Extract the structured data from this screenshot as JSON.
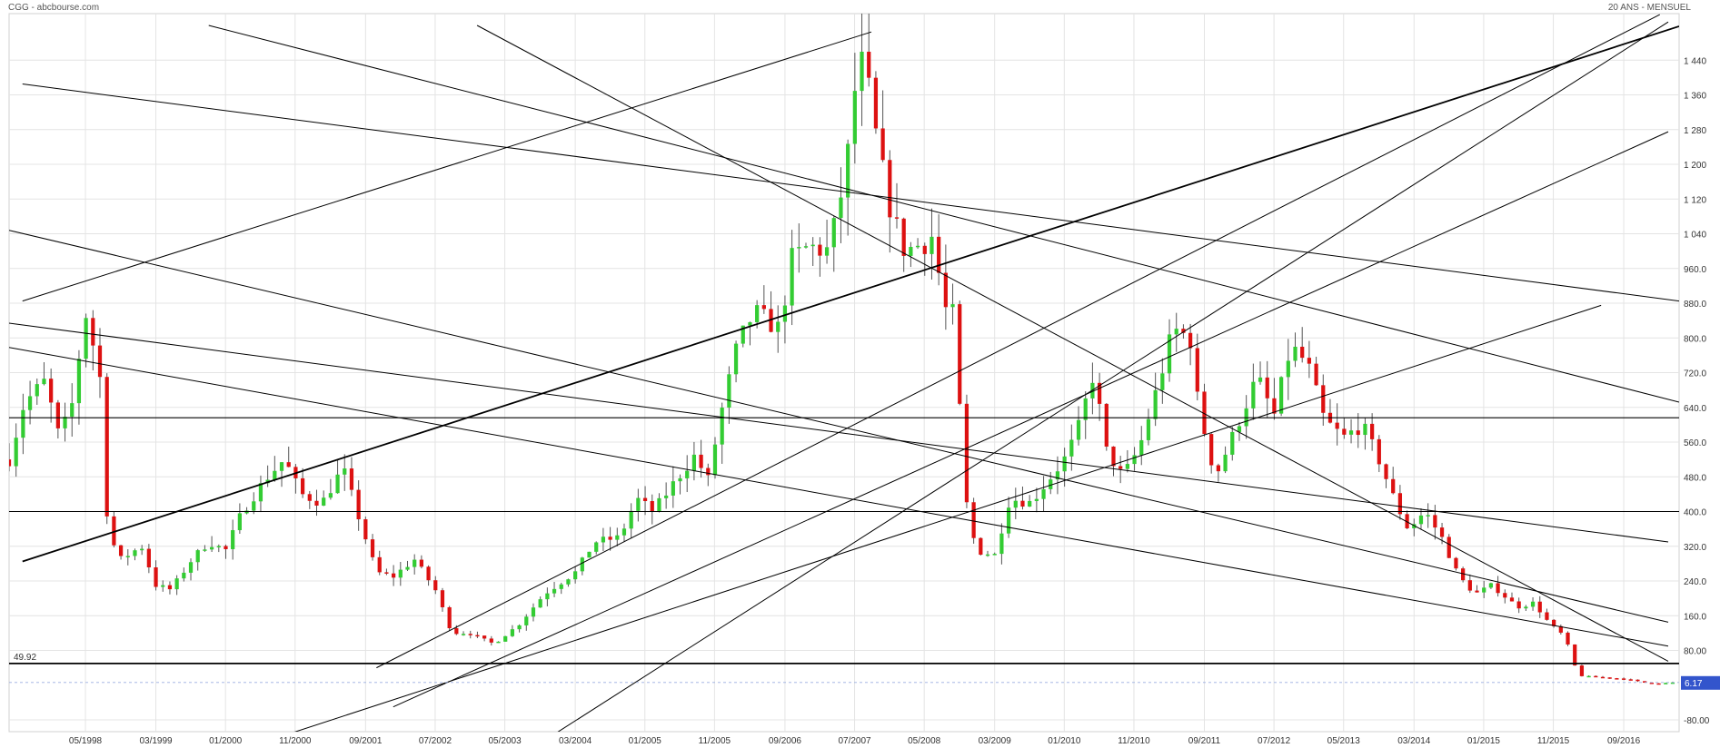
{
  "header": {
    "left_title": "CGG - abcbourse.com",
    "right_title": "20 ANS - MENSUEL"
  },
  "chart_data": {
    "type": "candlestick",
    "title": "CGG - abcbourse.com",
    "subtitle": "20 ANS - MENSUEL",
    "xlabel": "",
    "ylabel": "",
    "ylim": [
      -110,
      1490
    ],
    "grid": true,
    "legend": "none",
    "colors": {
      "up": "#33cc33",
      "down": "#dd1111",
      "grid": "#e4e4e4",
      "line": "#000000",
      "badge": "#3355cc"
    },
    "y_ticks": [
      -80,
      80,
      160,
      240,
      320,
      400,
      480,
      560,
      640,
      720,
      800,
      880,
      960,
      1040,
      1120,
      1200,
      1280,
      1360,
      1440
    ],
    "y_tick_labels": [
      "-80.00",
      "80.00",
      "160.0",
      "240.0",
      "320.0",
      "400.0",
      "480.0",
      "560.0",
      "640.0",
      "720.0",
      "800.0",
      "880.0",
      "960.0",
      "1 040",
      "1 120",
      "1 200",
      "1 280",
      "1 360",
      "1 440"
    ],
    "x_ticks": [
      {
        "label": "05/1998",
        "t": 1998.33
      },
      {
        "label": "03/1999",
        "t": 1999.17
      },
      {
        "label": "01/2000",
        "t": 2000.0
      },
      {
        "label": "11/2000",
        "t": 2000.83
      },
      {
        "label": "09/2001",
        "t": 2001.67
      },
      {
        "label": "07/2002",
        "t": 2002.5
      },
      {
        "label": "05/2003",
        "t": 2003.33
      },
      {
        "label": "03/2004",
        "t": 2004.17
      },
      {
        "label": "01/2005",
        "t": 2005.0
      },
      {
        "label": "11/2005",
        "t": 2005.83
      },
      {
        "label": "09/2006",
        "t": 2006.67
      },
      {
        "label": "07/2007",
        "t": 2007.5
      },
      {
        "label": "05/2008",
        "t": 2008.33
      },
      {
        "label": "03/2009",
        "t": 2009.17
      },
      {
        "label": "01/2010",
        "t": 2010.0
      },
      {
        "label": "11/2010",
        "t": 2010.83
      },
      {
        "label": "09/2011",
        "t": 2011.67
      },
      {
        "label": "07/2012",
        "t": 2012.5
      },
      {
        "label": "05/2013",
        "t": 2013.33
      },
      {
        "label": "03/2014",
        "t": 2014.17
      },
      {
        "label": "01/2015",
        "t": 2015.0
      },
      {
        "label": "11/2015",
        "t": 2015.83
      },
      {
        "label": "09/2016",
        "t": 2016.67
      }
    ],
    "t_range": [
      1997.42,
      2017.33
    ],
    "price_anchors": [
      [
        1997.42,
        520
      ],
      [
        1997.6,
        650
      ],
      [
        1997.85,
        700
      ],
      [
        1998.0,
        580
      ],
      [
        1998.15,
        620
      ],
      [
        1998.33,
        860
      ],
      [
        1998.5,
        720
      ],
      [
        1998.6,
        350
      ],
      [
        1998.75,
        290
      ],
      [
        1999.0,
        320
      ],
      [
        1999.17,
        230
      ],
      [
        1999.35,
        220
      ],
      [
        1999.6,
        290
      ],
      [
        1999.8,
        330
      ],
      [
        2000.0,
        310
      ],
      [
        2000.2,
        400
      ],
      [
        2000.5,
        480
      ],
      [
        2000.7,
        520
      ],
      [
        2000.9,
        440
      ],
      [
        2001.15,
        420
      ],
      [
        2001.4,
        500
      ],
      [
        2001.6,
        380
      ],
      [
        2001.8,
        260
      ],
      [
        2002.0,
        250
      ],
      [
        2002.25,
        290
      ],
      [
        2002.5,
        220
      ],
      [
        2002.7,
        120
      ],
      [
        2002.9,
        120
      ],
      [
        2003.2,
        95
      ],
      [
        2003.5,
        140
      ],
      [
        2003.8,
        210
      ],
      [
        2004.17,
        260
      ],
      [
        2004.4,
        330
      ],
      [
        2004.7,
        340
      ],
      [
        2004.9,
        430
      ],
      [
        2005.1,
        400
      ],
      [
        2005.4,
        480
      ],
      [
        2005.6,
        530
      ],
      [
        2005.75,
        470
      ],
      [
        2005.9,
        620
      ],
      [
        2006.1,
        780
      ],
      [
        2006.3,
        860
      ],
      [
        2006.6,
        820
      ],
      [
        2006.75,
        980
      ],
      [
        2006.95,
        1010
      ],
      [
        2007.2,
        1000
      ],
      [
        2007.4,
        1190
      ],
      [
        2007.55,
        1450
      ],
      [
        2007.65,
        1390
      ],
      [
        2007.8,
        1210
      ],
      [
        2007.95,
        1080
      ],
      [
        2008.1,
        1000
      ],
      [
        2008.33,
        1020
      ],
      [
        2008.45,
        1040
      ],
      [
        2008.55,
        870
      ],
      [
        2008.7,
        850
      ],
      [
        2008.8,
        450
      ],
      [
        2008.95,
        310
      ],
      [
        2009.17,
        300
      ],
      [
        2009.35,
        430
      ],
      [
        2009.6,
        420
      ],
      [
        2009.8,
        470
      ],
      [
        2010.0,
        520
      ],
      [
        2010.15,
        580
      ],
      [
        2010.35,
        720
      ],
      [
        2010.5,
        540
      ],
      [
        2010.7,
        480
      ],
      [
        2010.9,
        550
      ],
      [
        2011.1,
        680
      ],
      [
        2011.3,
        820
      ],
      [
        2011.5,
        800
      ],
      [
        2011.6,
        640
      ],
      [
        2011.8,
        480
      ],
      [
        2012.0,
        570
      ],
      [
        2012.3,
        710
      ],
      [
        2012.5,
        620
      ],
      [
        2012.7,
        780
      ],
      [
        2012.9,
        740
      ],
      [
        2013.1,
        610
      ],
      [
        2013.33,
        570
      ],
      [
        2013.55,
        600
      ],
      [
        2013.75,
        520
      ],
      [
        2013.95,
        420
      ],
      [
        2014.1,
        360
      ],
      [
        2014.3,
        400
      ],
      [
        2014.5,
        340
      ],
      [
        2014.7,
        250
      ],
      [
        2014.9,
        210
      ],
      [
        2015.1,
        230
      ],
      [
        2015.4,
        180
      ],
      [
        2015.6,
        190
      ],
      [
        2015.75,
        150
      ],
      [
        2015.85,
        130
      ],
      [
        2015.95,
        115
      ],
      [
        2016.05,
        70
      ],
      [
        2016.12,
        22
      ],
      [
        2016.4,
        18
      ],
      [
        2016.7,
        14
      ],
      [
        2016.9,
        6
      ],
      [
        2017.1,
        4
      ],
      [
        2017.3,
        6.17
      ]
    ],
    "last_value": 6.17,
    "last_value_label": "6.17",
    "horizontal_lines": [
      {
        "value": 49.92,
        "label": "49.92",
        "width": 1.8
      },
      {
        "value": 400,
        "label": "",
        "width": 1.1
      },
      {
        "value": 616,
        "label": "",
        "width": 1.1
      }
    ],
    "trendlines": [
      {
        "t1": 1997.58,
        "v1": 285,
        "t2": 2017.33,
        "v2": 1518,
        "w": 1.8
      },
      {
        "t1": 1997.58,
        "v1": 1385,
        "t2": 2017.33,
        "v2": 885,
        "w": 1.0
      },
      {
        "t1": 1997.42,
        "v1": 1048,
        "t2": 2017.2,
        "v2": 145,
        "w": 1.0
      },
      {
        "t1": 1997.42,
        "v1": 834,
        "t2": 2017.2,
        "v2": 330,
        "w": 1.0
      },
      {
        "t1": 1997.42,
        "v1": 778,
        "t2": 2017.2,
        "v2": 90,
        "w": 1.0
      },
      {
        "t1": 1997.58,
        "v1": 885,
        "t2": 2007.7,
        "v2": 1505,
        "w": 1.0
      },
      {
        "t1": 1999.8,
        "v1": 1520,
        "t2": 2017.33,
        "v2": 652,
        "w": 1.0
      },
      {
        "t1": 2003.0,
        "v1": 1520,
        "t2": 2017.2,
        "v2": 55,
        "w": 1.0
      },
      {
        "t1": 2000.0,
        "v1": -160,
        "t2": 2016.4,
        "v2": 875,
        "w": 1.0
      },
      {
        "t1": 2002.0,
        "v1": -50,
        "t2": 2017.2,
        "v2": 1275,
        "w": 1.0
      },
      {
        "t1": 2003.5,
        "v1": -165,
        "t2": 2017.2,
        "v2": 1528,
        "w": 1.0
      },
      {
        "t1": 2001.8,
        "v1": 40,
        "t2": 2017.1,
        "v2": 1545,
        "w": 1.0
      }
    ]
  }
}
